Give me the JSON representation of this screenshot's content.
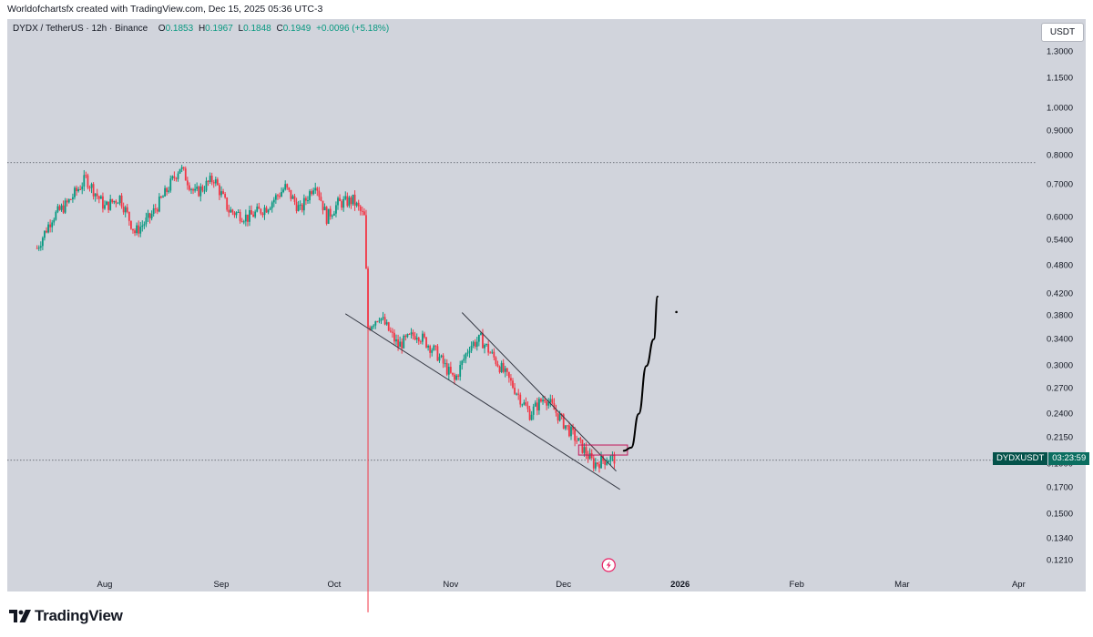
{
  "caption": "Worldofchartsfx created with TradingView.com, Dec 15, 2025 05:36 UTC-3",
  "legend": {
    "symbol": "DYDX / TetherUS · 12h · Binance",
    "o_key": "O",
    "o_val": "0.1853",
    "h_key": "H",
    "h_val": "0.1967",
    "l_key": "L",
    "l_val": "0.1848",
    "c_key": "C",
    "c_val": "0.1949",
    "change": "+0.0096 (+5.18%)"
  },
  "currency_button": "USDT",
  "ticker_tag": {
    "symbol": "DYDXUSDT",
    "countdown": "03:23:59"
  },
  "brand": "TradingView",
  "colors": {
    "up": "#089981",
    "down": "#f23645",
    "background": "#d1d4dc",
    "drawing": "#000000"
  },
  "chart_data": {
    "type": "candlestick",
    "interval": "12h",
    "y_scale": "log",
    "ylim": [
      0.115,
      1.45
    ],
    "y_ticks": [
      "1.3000",
      "1.1500",
      "1.0000",
      "0.9000",
      "0.8000",
      "0.7000",
      "0.6000",
      "0.5400",
      "0.4800",
      "0.4200",
      "0.3800",
      "0.3400",
      "0.3000",
      "0.2700",
      "0.2400",
      "0.2150",
      "0.1900",
      "0.1700",
      "0.1500",
      "0.1340",
      "0.1210"
    ],
    "x_ticks": [
      "Aug",
      "Sep",
      "Oct",
      "Nov",
      "Dec",
      "2026",
      "Feb",
      "Mar",
      "Apr"
    ],
    "last_price": 0.1949,
    "horizontal_level": 0.775,
    "price_path": [
      [
        "2025-07-14",
        0.52
      ],
      [
        "2025-07-18",
        0.6
      ],
      [
        "2025-07-22",
        0.64
      ],
      [
        "2025-07-27",
        0.72
      ],
      [
        "2025-08-01",
        0.63
      ],
      [
        "2025-08-05",
        0.66
      ],
      [
        "2025-08-09",
        0.56
      ],
      [
        "2025-08-13",
        0.6
      ],
      [
        "2025-08-17",
        0.67
      ],
      [
        "2025-08-21",
        0.76
      ],
      [
        "2025-08-25",
        0.67
      ],
      [
        "2025-08-30",
        0.72
      ],
      [
        "2025-09-03",
        0.62
      ],
      [
        "2025-09-08",
        0.6
      ],
      [
        "2025-09-13",
        0.63
      ],
      [
        "2025-09-18",
        0.69
      ],
      [
        "2025-09-22",
        0.62
      ],
      [
        "2025-09-26",
        0.71
      ],
      [
        "2025-09-29",
        0.6
      ],
      [
        "2025-10-02",
        0.64
      ],
      [
        "2025-10-06",
        0.65
      ],
      [
        "2025-10-09",
        0.6
      ],
      [
        "2025-10-10",
        0.36
      ],
      [
        "2025-10-13",
        0.38
      ],
      [
        "2025-10-18",
        0.33
      ],
      [
        "2025-10-23",
        0.35
      ],
      [
        "2025-10-28",
        0.32
      ],
      [
        "2025-11-02",
        0.28
      ],
      [
        "2025-11-06",
        0.33
      ],
      [
        "2025-11-09",
        0.34
      ],
      [
        "2025-11-14",
        0.3
      ],
      [
        "2025-11-18",
        0.27
      ],
      [
        "2025-11-22",
        0.24
      ],
      [
        "2025-11-26",
        0.26
      ],
      [
        "2025-12-01",
        0.23
      ],
      [
        "2025-12-05",
        0.21
      ],
      [
        "2025-12-09",
        0.19
      ],
      [
        "2025-12-13",
        0.195
      ],
      [
        "2025-12-15",
        0.1949
      ]
    ],
    "crash_wick_low": 0.1,
    "falling_wedge": {
      "upper": [
        [
          "2025-11-04",
          0.385
        ],
        [
          "2025-12-15",
          0.19
        ]
      ],
      "lower": [
        [
          "2025-10-04",
          0.37
        ],
        [
          "2025-12-16",
          0.173
        ]
      ]
    },
    "highlight_zone": {
      "from": "2025-12-05",
      "to": "2025-12-18",
      "low": 0.198,
      "high": 0.204
    },
    "projection": [
      [
        "2025-12-17",
        0.202
      ],
      [
        "2025-12-19",
        0.205
      ],
      [
        "2025-12-21",
        0.24
      ],
      [
        "2025-12-23",
        0.3
      ],
      [
        "2025-12-25",
        0.34
      ],
      [
        "2025-12-26",
        0.415
      ]
    ],
    "projection_dot": [
      "2025-12-31",
      0.386
    ]
  }
}
